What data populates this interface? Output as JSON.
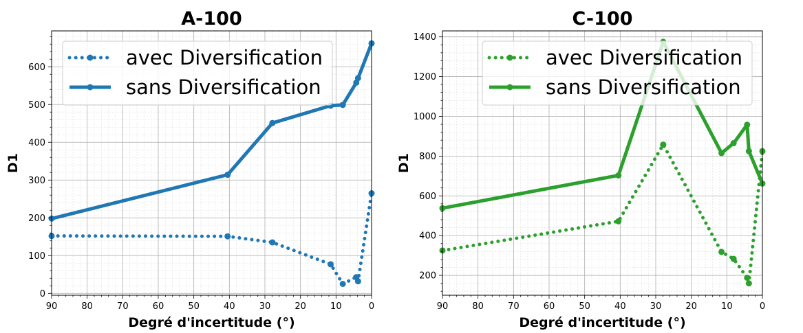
{
  "chart_data": [
    {
      "type": "line",
      "title": "A-100",
      "xlabel": "Degré d'incertitude (°)",
      "ylabel": "D1",
      "xlim": [
        90,
        0
      ],
      "ylim": [
        -5,
        695
      ],
      "xticks": [
        90,
        80,
        70,
        60,
        50,
        40,
        30,
        20,
        10,
        0
      ],
      "yticks": [
        0,
        100,
        200,
        300,
        400,
        500,
        600
      ],
      "grid": true,
      "legend_position": "top-right",
      "color": "#1f77b4",
      "series": [
        {
          "name": "avec Diversification",
          "style": "dotted",
          "x": [
            90,
            40.5,
            27.9,
            11.5,
            8.1,
            4.3,
            3.8,
            0
          ],
          "y": [
            152,
            151,
            135,
            77,
            25,
            43,
            32,
            265
          ]
        },
        {
          "name": "sans Diversification",
          "style": "solid",
          "x": [
            90,
            40.5,
            27.9,
            11.5,
            8.1,
            4.3,
            3.8,
            0
          ],
          "y": [
            198,
            314,
            451,
            497,
            499,
            558,
            570,
            662
          ]
        }
      ]
    },
    {
      "type": "line",
      "title": "C-100",
      "xlabel": "Degré d'incertitude (°)",
      "ylabel": "D1",
      "xlim": [
        90,
        0
      ],
      "ylim": [
        100,
        1430
      ],
      "xticks": [
        90,
        80,
        70,
        60,
        50,
        40,
        30,
        20,
        10,
        0
      ],
      "yticks": [
        200,
        400,
        600,
        800,
        1000,
        1200,
        1400
      ],
      "grid": true,
      "legend_position": "top-right",
      "color": "#2ca02c",
      "series": [
        {
          "name": "avec Diversification",
          "style": "dotted",
          "x": [
            90,
            40.5,
            27.9,
            11.5,
            8.1,
            4.3,
            3.8,
            0
          ],
          "y": [
            325,
            472,
            858,
            318,
            283,
            188,
            160,
            825
          ]
        },
        {
          "name": "sans Diversification",
          "style": "solid",
          "x": [
            90,
            40.5,
            27.9,
            11.5,
            8.1,
            4.3,
            3.8,
            0
          ],
          "y": [
            538,
            703,
            1375,
            815,
            865,
            958,
            825,
            662
          ]
        }
      ]
    }
  ]
}
